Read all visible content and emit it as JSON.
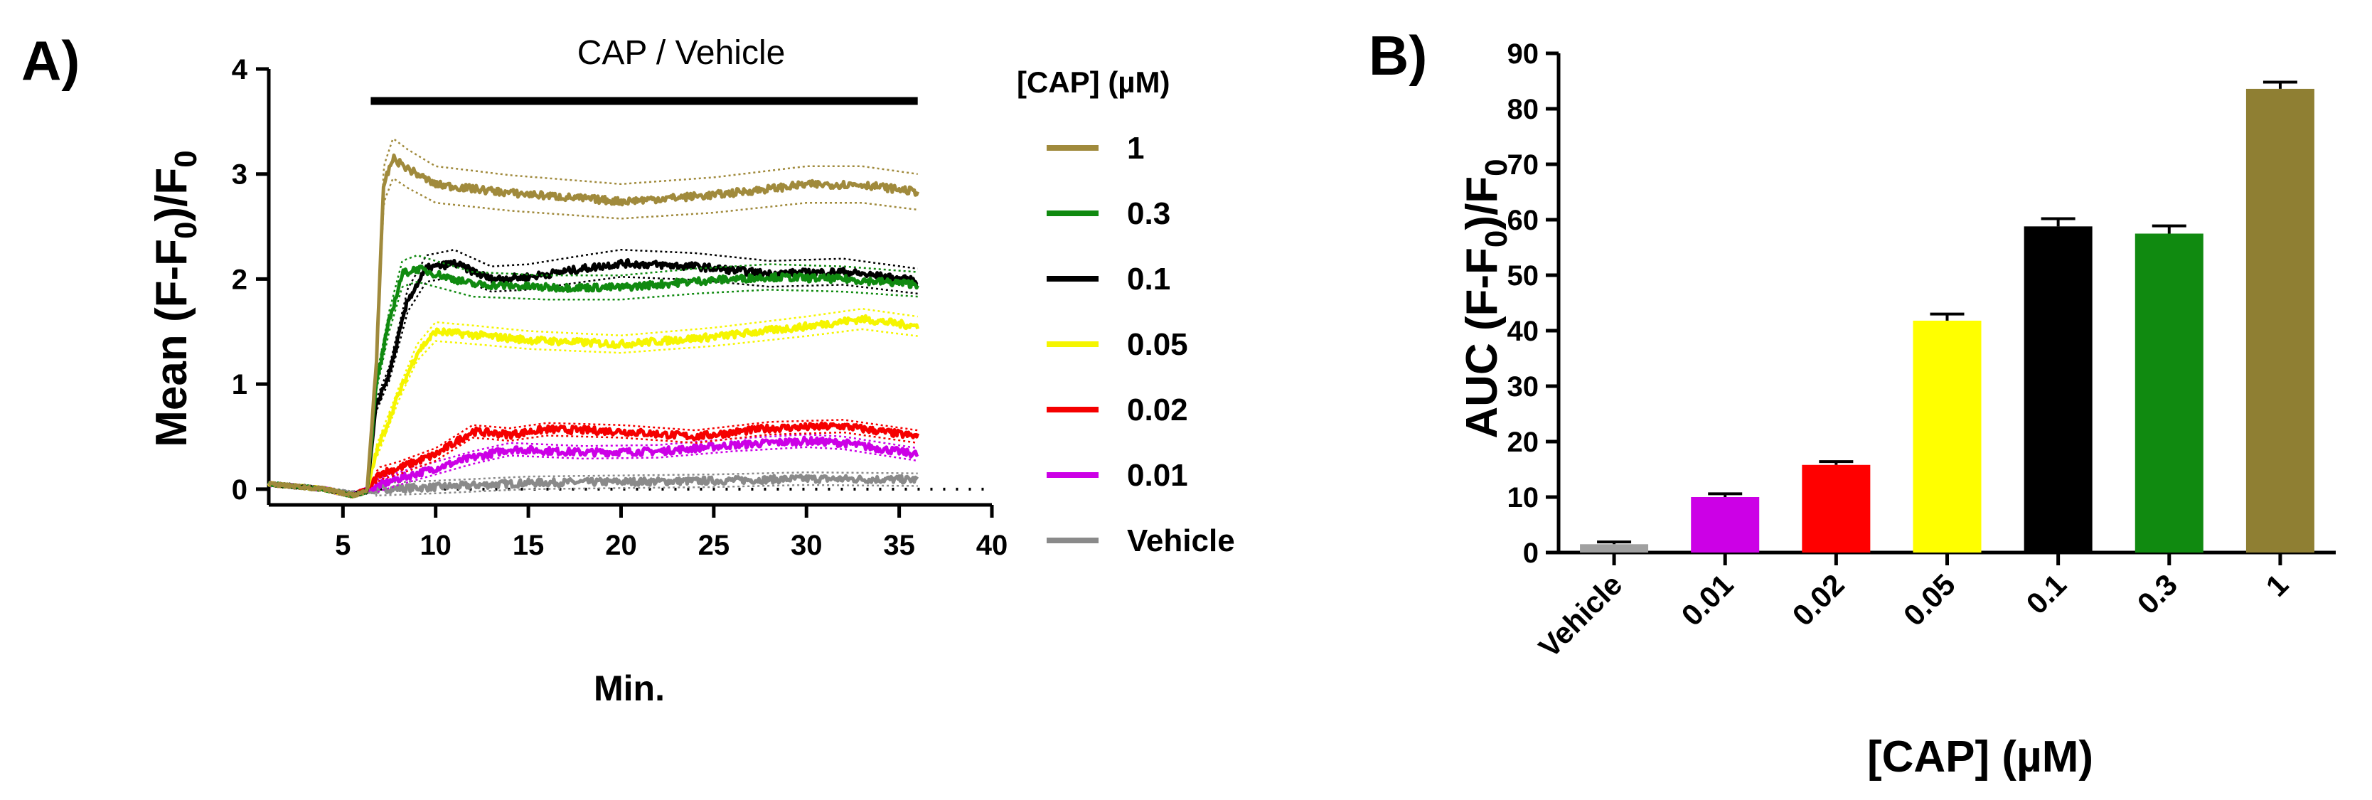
{
  "figure": {
    "panel_a_label": "A)",
    "panel_b_label": "B)"
  },
  "chart_data": [
    {
      "type": "line",
      "panel": "A)",
      "title": "",
      "annotation": "CAP / Vehicle",
      "annotation_bar_x": [
        6.5,
        36
      ],
      "xlabel": "Min.",
      "ylabel_parts": [
        "Mean (F-F",
        "0",
        ")/F",
        "0"
      ],
      "xlim": [
        1,
        40
      ],
      "ylim": [
        -0.15,
        4
      ],
      "xticks": [
        5,
        10,
        15,
        20,
        25,
        30,
        35,
        40
      ],
      "yticks": [
        0,
        1,
        2,
        3,
        4
      ],
      "baseline_dotted": 0,
      "legend_title": "[CAP] (µM)",
      "legend_position": "right",
      "series": [
        {
          "name": "1",
          "color": "#A08A3C",
          "points": [
            [
              1,
              0.05
            ],
            [
              4,
              0.0
            ],
            [
              5.5,
              -0.06
            ],
            [
              6.3,
              -0.02
            ],
            [
              6.8,
              1.2
            ],
            [
              7.2,
              2.9
            ],
            [
              7.7,
              3.15
            ],
            [
              8.5,
              3.05
            ],
            [
              10,
              2.9
            ],
            [
              14,
              2.82
            ],
            [
              20,
              2.74
            ],
            [
              25,
              2.8
            ],
            [
              30,
              2.9
            ],
            [
              33,
              2.9
            ],
            [
              36,
              2.83
            ]
          ]
        },
        {
          "name": "0.3",
          "color": "#108A10",
          "points": [
            [
              1,
              0.05
            ],
            [
              4,
              0.0
            ],
            [
              5.5,
              -0.06
            ],
            [
              6.3,
              -0.02
            ],
            [
              6.8,
              1.0
            ],
            [
              7.5,
              1.6
            ],
            [
              8.2,
              2.05
            ],
            [
              9,
              2.1
            ],
            [
              10,
              2.05
            ],
            [
              12,
              1.95
            ],
            [
              16,
              1.92
            ],
            [
              20,
              1.92
            ],
            [
              24,
              1.98
            ],
            [
              28,
              2.02
            ],
            [
              32,
              2.0
            ],
            [
              36,
              1.95
            ]
          ]
        },
        {
          "name": "0.1",
          "color": "#000000",
          "points": [
            [
              1,
              0.05
            ],
            [
              4,
              0.0
            ],
            [
              5.5,
              -0.06
            ],
            [
              6.3,
              -0.02
            ],
            [
              6.8,
              0.8
            ],
            [
              7.5,
              1.1
            ],
            [
              8.5,
              1.8
            ],
            [
              9.5,
              2.1
            ],
            [
              11,
              2.15
            ],
            [
              13,
              2.0
            ],
            [
              15,
              2.02
            ],
            [
              18,
              2.1
            ],
            [
              20,
              2.15
            ],
            [
              24,
              2.12
            ],
            [
              28,
              2.05
            ],
            [
              32,
              2.07
            ],
            [
              36,
              1.98
            ]
          ]
        },
        {
          "name": "0.05",
          "color": "#F5F500",
          "points": [
            [
              1,
              0.05
            ],
            [
              4,
              0.0
            ],
            [
              5.5,
              -0.06
            ],
            [
              6.3,
              -0.02
            ],
            [
              6.8,
              0.35
            ],
            [
              8,
              0.9
            ],
            [
              9,
              1.3
            ],
            [
              10,
              1.5
            ],
            [
              12,
              1.47
            ],
            [
              15,
              1.42
            ],
            [
              20,
              1.38
            ],
            [
              25,
              1.45
            ],
            [
              30,
              1.55
            ],
            [
              33,
              1.62
            ],
            [
              36,
              1.55
            ]
          ]
        },
        {
          "name": "0.02",
          "color": "#F50000",
          "points": [
            [
              1,
              0.05
            ],
            [
              4,
              0.0
            ],
            [
              5.5,
              -0.06
            ],
            [
              6.3,
              0.0
            ],
            [
              7,
              0.15
            ],
            [
              8,
              0.2
            ],
            [
              10,
              0.33
            ],
            [
              12,
              0.55
            ],
            [
              14,
              0.52
            ],
            [
              16,
              0.57
            ],
            [
              20,
              0.55
            ],
            [
              24,
              0.5
            ],
            [
              28,
              0.58
            ],
            [
              32,
              0.6
            ],
            [
              36,
              0.5
            ]
          ]
        },
        {
          "name": "0.01",
          "color": "#CC00E6",
          "points": [
            [
              1,
              0.05
            ],
            [
              4,
              0.0
            ],
            [
              5.5,
              -0.06
            ],
            [
              6.3,
              0.0
            ],
            [
              8,
              0.1
            ],
            [
              10,
              0.2
            ],
            [
              12,
              0.3
            ],
            [
              14,
              0.38
            ],
            [
              18,
              0.35
            ],
            [
              22,
              0.36
            ],
            [
              26,
              0.42
            ],
            [
              30,
              0.46
            ],
            [
              32,
              0.44
            ],
            [
              36,
              0.33
            ]
          ]
        },
        {
          "name": "Vehicle",
          "color": "#8A8A8A",
          "points": [
            [
              1,
              0.05
            ],
            [
              4,
              0.0
            ],
            [
              5.5,
              -0.04
            ],
            [
              7,
              0.0
            ],
            [
              10,
              0.02
            ],
            [
              15,
              0.06
            ],
            [
              20,
              0.07
            ],
            [
              25,
              0.08
            ],
            [
              30,
              0.1
            ],
            [
              36,
              0.09
            ]
          ]
        }
      ]
    },
    {
      "type": "bar",
      "panel": "B)",
      "title": "",
      "xlabel": "[CAP] (µM)",
      "ylabel_parts": [
        "AUC (F-F",
        "0",
        ")/F",
        "0"
      ],
      "ylim": [
        0,
        90
      ],
      "yticks": [
        0,
        10,
        20,
        30,
        40,
        50,
        60,
        70,
        80,
        90
      ],
      "categories": [
        "Vehicle",
        "0.01",
        "0.02",
        "0.05",
        "0.1",
        "0.3",
        "1"
      ],
      "values": [
        1.5,
        10,
        15.8,
        41.8,
        58.8,
        57.5,
        83.6
      ],
      "errors": [
        0.4,
        0.6,
        0.6,
        1.2,
        1.4,
        1.4,
        1.2
      ],
      "colors": [
        "#A0A0A0",
        "#CC00E6",
        "#FF0000",
        "#FFFF00",
        "#000000",
        "#108A10",
        "#8F7F33"
      ]
    }
  ]
}
